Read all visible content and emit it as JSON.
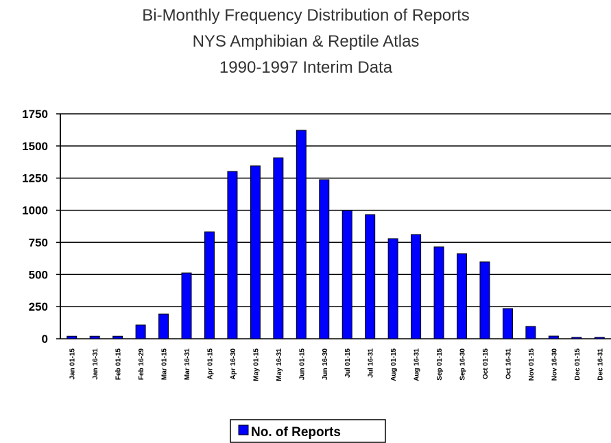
{
  "chart_data": {
    "type": "bar",
    "title": [
      "Bi-Monthly Frequency Distribution of Reports",
      "NYS Amphibian & Reptile Atlas",
      "1990-1997 Interim Data"
    ],
    "categories": [
      "Jan 01-15",
      "Jan 16-31",
      "Feb 01-15",
      "Feb 16-29",
      "Mar 01-15",
      "Mar 16-31",
      "Apr 01-15",
      "Apr 16-30",
      "May 01-15",
      "May 16-31",
      "Jun 01-15",
      "Jun 16-30",
      "Jul 01-15",
      "Jul 16-31",
      "Aug 01-15",
      "Aug 16-31",
      "Sep 01-15",
      "Sep 16-30",
      "Oct 01-15",
      "Oct 16-31",
      "Nov 01-15",
      "Nov 16-30",
      "Dec 01-15",
      "Dec 16-31"
    ],
    "series": [
      {
        "name": "No. of Reports",
        "color": "#0000ff",
        "values": [
          20,
          20,
          20,
          107,
          192,
          512,
          832,
          1302,
          1345,
          1408,
          1622,
          1238,
          998,
          966,
          779,
          811,
          715,
          662,
          598,
          235,
          96,
          21,
          11,
          11
        ]
      }
    ],
    "ylim": [
      0,
      1750
    ],
    "yticks": [
      0,
      250,
      500,
      750,
      1000,
      1250,
      1500,
      1750
    ],
    "grid": true,
    "legend": "bottom"
  }
}
